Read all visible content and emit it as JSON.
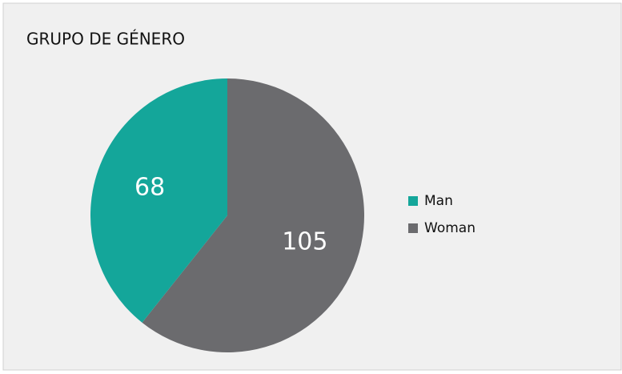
{
  "chart_data": {
    "type": "pie",
    "title": "GRUPO  DE GÉNERO",
    "categories": [
      "Man",
      "Woman"
    ],
    "values": [
      68,
      105
    ],
    "colors": [
      "#14a69a",
      "#6b6b6e"
    ],
    "legend": "right"
  }
}
